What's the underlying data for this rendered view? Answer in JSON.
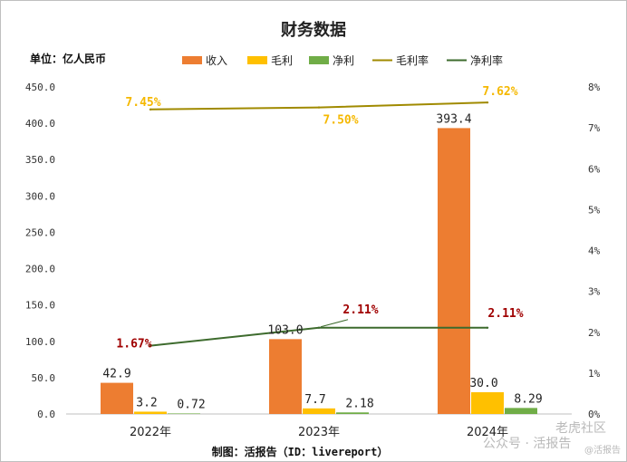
{
  "chart_data": {
    "type": "bar",
    "title": "财务数据",
    "unit_label": "单位：亿人民币",
    "categories": [
      "2022年",
      "2023年",
      "2024年"
    ],
    "series": [
      {
        "name": "收入",
        "kind": "bar",
        "axis": "left",
        "color": "#ed7d31",
        "values": [
          42.9,
          103.0,
          393.4
        ],
        "labels": [
          "42.9",
          "103.0",
          "393.4"
        ]
      },
      {
        "name": "毛利",
        "kind": "bar",
        "axis": "left",
        "color": "#ffc000",
        "values": [
          3.2,
          7.7,
          30.0
        ],
        "labels": [
          "3.2",
          "7.7",
          "30.0"
        ]
      },
      {
        "name": "净利",
        "kind": "bar",
        "axis": "left",
        "color": "#70ad47",
        "values": [
          0.72,
          2.18,
          8.29
        ],
        "labels": [
          "0.72",
          "2.18",
          "8.29"
        ]
      },
      {
        "name": "毛利率",
        "kind": "line",
        "axis": "right",
        "color": "#a08a00",
        "values": [
          7.45,
          7.5,
          7.62
        ],
        "labels": [
          "7.45%",
          "7.50%",
          "7.62%"
        ]
      },
      {
        "name": "净利率",
        "kind": "line",
        "axis": "right",
        "color": "#3d6b2d",
        "values": [
          1.67,
          2.11,
          2.11
        ],
        "labels": [
          "1.67%",
          "2.11%",
          "2.11%"
        ]
      }
    ],
    "y_left": {
      "range": [
        0,
        450
      ],
      "ticks": [
        "0.0",
        "50.0",
        "100.0",
        "150.0",
        "200.0",
        "250.0",
        "300.0",
        "350.0",
        "400.0",
        "450.0"
      ]
    },
    "y_right": {
      "range": [
        0,
        8
      ],
      "ticks": [
        "0%",
        "1%",
        "2%",
        "3%",
        "4%",
        "5%",
        "6%",
        "7%",
        "8%"
      ]
    },
    "grid": false,
    "legend_position": "top"
  },
  "footer": "制图：活报告（ID：livereport）",
  "watermark": {
    "line1": "老虎社区",
    "line2": "公众号 · 活报告",
    "line3": "@活报告"
  }
}
